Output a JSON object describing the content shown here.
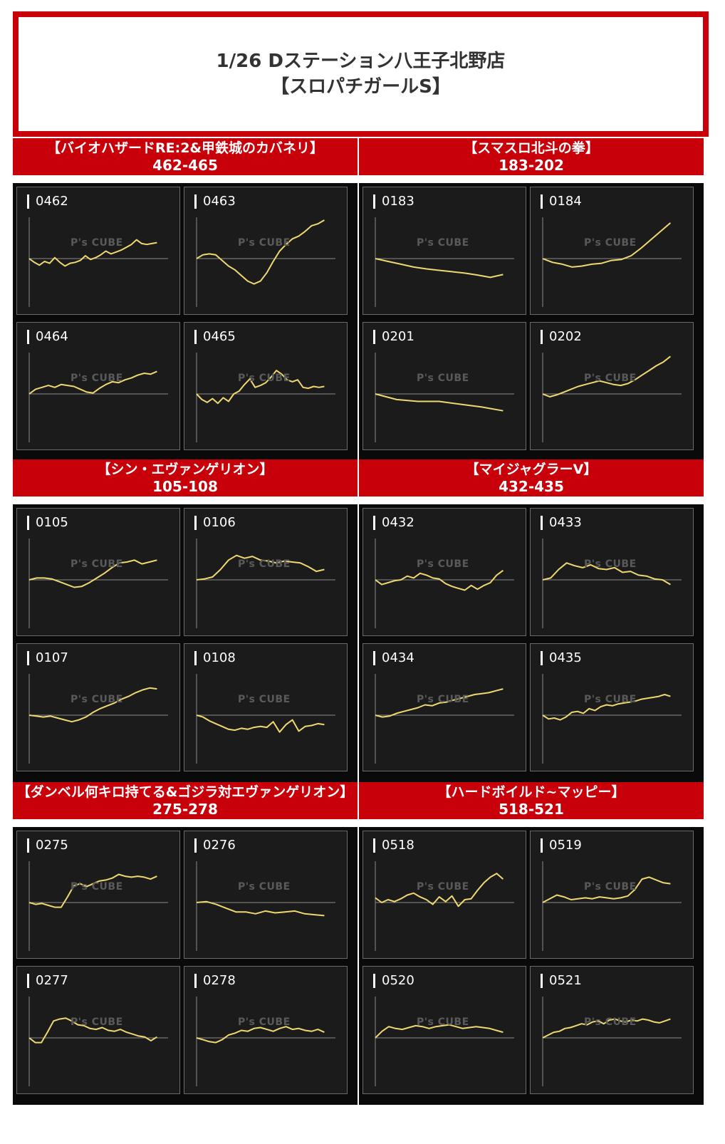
{
  "header": {
    "line1": "1/26 Dステーション八王子北野店",
    "line2": "【スロパチガールS】"
  },
  "watermark": "P's CUBE",
  "colors": {
    "accent": "#c8000a",
    "line": "#f0d870",
    "panel": "#1b1b1b"
  },
  "chart_data": [
    {
      "type": "line",
      "section": "【バイオハザードRE:2&甲鉄城のカバネリ】",
      "range": "462-465",
      "label": "0462",
      "x": [
        0,
        1,
        2,
        3,
        4,
        5,
        6,
        7,
        8,
        9,
        10,
        11,
        12,
        13,
        14,
        15,
        16,
        17,
        18,
        19,
        20,
        21,
        22,
        23,
        24,
        25
      ],
      "values": [
        0,
        -8,
        -14,
        -6,
        -10,
        2,
        -8,
        -16,
        -10,
        -8,
        -4,
        6,
        -2,
        2,
        8,
        16,
        10,
        14,
        18,
        24,
        30,
        40,
        32,
        30,
        32,
        34
      ]
    },
    {
      "type": "line",
      "section": "【バイオハザードRE:2&甲鉄城のカバネリ】",
      "range": "462-465",
      "label": "0463",
      "x": [
        0,
        1,
        2,
        3,
        4,
        5,
        6,
        7,
        8,
        9,
        10,
        11,
        12,
        13,
        14,
        15,
        16,
        17,
        18,
        19,
        20
      ],
      "values": [
        0,
        8,
        10,
        8,
        -4,
        -16,
        -24,
        -36,
        -48,
        -54,
        -48,
        -30,
        -6,
        16,
        30,
        42,
        48,
        58,
        70,
        74,
        82
      ]
    },
    {
      "type": "line",
      "section": "【バイオハザードRE:2&甲鉄城のカバネリ】",
      "range": "462-465",
      "label": "0464",
      "x": [
        0,
        1,
        2,
        3,
        4,
        5,
        6,
        7,
        8,
        9,
        10,
        11,
        12,
        13,
        14,
        15,
        16,
        17,
        18,
        19,
        20
      ],
      "values": [
        0,
        10,
        14,
        18,
        14,
        20,
        18,
        16,
        10,
        4,
        2,
        12,
        20,
        26,
        24,
        30,
        34,
        40,
        44,
        42,
        48
      ]
    },
    {
      "type": "line",
      "section": "【バイオハザードRE:2&甲鉄城のカバネリ】",
      "range": "462-465",
      "label": "0465",
      "x": [
        0,
        1,
        2,
        3,
        4,
        5,
        6,
        7,
        8,
        9,
        10,
        11,
        12,
        13,
        14,
        15,
        16,
        17,
        18,
        19,
        20,
        21,
        22,
        23,
        24
      ],
      "values": [
        0,
        -12,
        -18,
        -10,
        -20,
        -8,
        -16,
        0,
        6,
        20,
        32,
        14,
        18,
        24,
        36,
        50,
        42,
        30,
        26,
        30,
        14,
        12,
        16,
        14,
        16
      ]
    },
    {
      "type": "line",
      "section": "【スマスロ北斗の拳】",
      "range": "183-202",
      "label": "0183",
      "x": [
        0,
        1,
        2,
        3,
        4,
        5,
        6,
        7,
        8,
        9,
        10
      ],
      "values": [
        0,
        -6,
        -12,
        -18,
        -22,
        -25,
        -28,
        -31,
        -35,
        -40,
        -34
      ]
    },
    {
      "type": "line",
      "section": "【スマスロ北斗の拳】",
      "range": "183-202",
      "label": "0184",
      "x": [
        0,
        1,
        2,
        3,
        4,
        5,
        6,
        7,
        8,
        9,
        10,
        11,
        12,
        13
      ],
      "values": [
        0,
        -8,
        -12,
        -18,
        -16,
        -12,
        -10,
        -4,
        -2,
        6,
        22,
        40,
        58,
        76
      ]
    },
    {
      "type": "line",
      "section": "【スマスロ北斗の拳】",
      "range": "183-202",
      "label": "0201",
      "x": [
        0,
        1,
        2,
        3,
        4,
        5,
        6
      ],
      "values": [
        0,
        -12,
        -16,
        -16,
        -22,
        -28,
        -36
      ]
    },
    {
      "type": "line",
      "section": "【スマスロ北斗の拳】",
      "range": "183-202",
      "label": "0202",
      "x": [
        0,
        1,
        2,
        3,
        4,
        5,
        6,
        7,
        8,
        9,
        10,
        11,
        12,
        13,
        14,
        15,
        16,
        17,
        18
      ],
      "values": [
        0,
        -6,
        -2,
        4,
        10,
        16,
        20,
        24,
        28,
        24,
        20,
        18,
        22,
        30,
        40,
        50,
        60,
        68,
        80
      ]
    },
    {
      "type": "line",
      "section": "【シン・エヴァンゲリオン】",
      "range": "105-108",
      "label": "0105",
      "x": [
        0,
        1,
        2,
        3,
        4,
        5,
        6,
        7,
        8,
        9,
        10,
        11,
        12,
        13,
        14,
        15,
        16,
        17
      ],
      "values": [
        0,
        4,
        4,
        2,
        -4,
        -10,
        -16,
        -14,
        -6,
        4,
        14,
        26,
        36,
        38,
        42,
        34,
        38,
        42
      ]
    },
    {
      "type": "line",
      "section": "【シン・エヴァンゲリオン】",
      "range": "105-108",
      "label": "0106",
      "x": [
        0,
        1,
        2,
        3,
        4,
        5,
        6,
        7,
        8,
        9,
        10,
        11,
        12,
        13,
        14,
        15,
        16
      ],
      "values": [
        0,
        2,
        6,
        22,
        42,
        52,
        46,
        50,
        42,
        40,
        36,
        40,
        38,
        36,
        28,
        18,
        22
      ]
    },
    {
      "type": "line",
      "section": "【シン・エヴァンゲリオン】",
      "range": "105-108",
      "label": "0107",
      "x": [
        0,
        1,
        2,
        3,
        4,
        5,
        6,
        7,
        8,
        9,
        10,
        11,
        12,
        13,
        14,
        15,
        16,
        17,
        18
      ],
      "values": [
        0,
        -2,
        -4,
        -2,
        -6,
        -10,
        -14,
        -10,
        -4,
        6,
        14,
        20,
        26,
        34,
        40,
        48,
        54,
        58,
        56
      ]
    },
    {
      "type": "line",
      "section": "【シン・エヴァンゲリオン】",
      "range": "105-108",
      "label": "0108",
      "x": [
        0,
        1,
        2,
        3,
        4,
        5,
        6,
        7,
        8,
        9,
        10,
        11,
        12,
        13,
        14,
        15,
        16,
        17,
        18,
        19,
        20
      ],
      "values": [
        0,
        -4,
        -12,
        -18,
        -24,
        -30,
        -32,
        -28,
        -30,
        -26,
        -24,
        -26,
        -14,
        -36,
        -20,
        -10,
        -34,
        -24,
        -22,
        -18,
        -20
      ]
    },
    {
      "type": "line",
      "section": "【マイジャグラーV】",
      "range": "432-435",
      "label": "0432",
      "x": [
        0,
        1,
        2,
        3,
        4,
        5,
        6,
        7,
        8,
        9,
        10,
        11,
        12,
        13,
        14,
        15,
        16,
        17,
        18,
        19,
        20
      ],
      "values": [
        0,
        -10,
        -6,
        -2,
        0,
        8,
        4,
        14,
        10,
        4,
        2,
        -8,
        -14,
        -18,
        -22,
        -12,
        -20,
        -12,
        -6,
        10,
        20
      ]
    },
    {
      "type": "line",
      "section": "【マイジャグラーV】",
      "range": "432-435",
      "label": "0433",
      "x": [
        0,
        1,
        2,
        3,
        4,
        5,
        6,
        7,
        8,
        9,
        10,
        11,
        12,
        13,
        14,
        15,
        16
      ],
      "values": [
        0,
        4,
        22,
        36,
        30,
        26,
        32,
        24,
        22,
        26,
        16,
        18,
        10,
        8,
        2,
        0,
        -10
      ]
    },
    {
      "type": "line",
      "section": "【マイジャグラーV】",
      "range": "432-435",
      "label": "0434",
      "x": [
        0,
        1,
        2,
        3,
        4,
        5,
        6,
        7,
        8,
        9,
        10,
        11,
        12,
        13,
        14,
        15,
        16,
        17,
        18
      ],
      "values": [
        0,
        -4,
        -2,
        4,
        8,
        12,
        16,
        22,
        20,
        26,
        28,
        32,
        36,
        40,
        44,
        46,
        48,
        52,
        56
      ]
    },
    {
      "type": "line",
      "section": "【マイジャグラーV】",
      "range": "432-435",
      "label": "0435",
      "x": [
        0,
        1,
        2,
        3,
        4,
        5,
        6,
        7,
        8,
        9,
        10,
        11,
        12,
        13,
        14,
        15,
        16,
        17,
        18,
        19,
        20,
        21,
        22
      ],
      "values": [
        0,
        -8,
        -6,
        -10,
        -4,
        6,
        8,
        4,
        14,
        10,
        18,
        22,
        20,
        24,
        26,
        28,
        30,
        34,
        36,
        38,
        40,
        44,
        40
      ]
    },
    {
      "type": "line",
      "section": "【ダンベル何キロ持てる&ゴジラ対エヴァンゲリオン】",
      "range": "275-278",
      "label": "0275",
      "x": [
        0,
        1,
        2,
        3,
        4,
        5,
        6,
        7,
        8,
        9,
        10,
        11,
        12,
        13,
        14,
        15,
        16,
        17,
        18,
        19,
        20
      ],
      "values": [
        0,
        -4,
        -2,
        -6,
        -10,
        -10,
        12,
        36,
        40,
        34,
        40,
        46,
        48,
        52,
        60,
        56,
        54,
        56,
        54,
        50,
        56
      ]
    },
    {
      "type": "line",
      "section": "【ダンベル何キロ持てる&ゴジラ対エヴァンゲリオン】",
      "range": "275-278",
      "label": "0276",
      "x": [
        0,
        1,
        2,
        3,
        4,
        5,
        6,
        7,
        8,
        9,
        10,
        11,
        12,
        13
      ],
      "values": [
        0,
        2,
        -4,
        -12,
        -20,
        -20,
        -24,
        -18,
        -22,
        -20,
        -18,
        -24,
        -26,
        -28
      ]
    },
    {
      "type": "line",
      "section": "【ダンベル何キロ持てる&ゴジラ対エヴァンゲリオン】",
      "range": "275-278",
      "label": "0277",
      "x": [
        0,
        1,
        2,
        3,
        4,
        5,
        6,
        7,
        8,
        9,
        10,
        11,
        12,
        13,
        14,
        15,
        16,
        17,
        18,
        19,
        20,
        21
      ],
      "values": [
        0,
        -10,
        -10,
        12,
        36,
        40,
        42,
        36,
        28,
        26,
        20,
        18,
        22,
        16,
        14,
        18,
        12,
        8,
        4,
        2,
        -6,
        2
      ]
    },
    {
      "type": "line",
      "section": "【ダンベル何キロ持てる&ゴジラ対エヴァンゲリオン】",
      "range": "275-278",
      "label": "0278",
      "x": [
        0,
        1,
        2,
        3,
        4,
        5,
        6,
        7,
        8,
        9,
        10,
        11,
        12,
        13,
        14,
        15,
        16,
        17,
        18,
        19,
        20
      ],
      "values": [
        0,
        -4,
        -8,
        -10,
        -4,
        6,
        10,
        16,
        14,
        20,
        22,
        18,
        14,
        20,
        24,
        18,
        20,
        16,
        14,
        18,
        12
      ]
    },
    {
      "type": "line",
      "section": "【ハードボイルド~マッピー】",
      "range": "518-521",
      "label": "0518",
      "x": [
        0,
        1,
        2,
        3,
        4,
        5,
        6,
        7,
        8,
        9,
        10,
        11,
        12,
        13,
        14,
        15,
        16,
        17,
        18,
        19,
        20
      ],
      "values": [
        10,
        0,
        6,
        2,
        8,
        16,
        20,
        12,
        6,
        -4,
        12,
        2,
        14,
        -8,
        6,
        8,
        26,
        42,
        54,
        62,
        50
      ]
    },
    {
      "type": "line",
      "section": "【ハードボイルド~マッピー】",
      "range": "518-521",
      "label": "0519",
      "x": [
        0,
        1,
        2,
        3,
        4,
        5,
        6,
        7,
        8,
        9,
        10,
        11,
        12,
        13,
        14,
        15,
        16,
        17,
        18
      ],
      "values": [
        0,
        8,
        16,
        12,
        6,
        8,
        10,
        8,
        12,
        10,
        8,
        10,
        14,
        28,
        50,
        54,
        48,
        42,
        40
      ]
    },
    {
      "type": "line",
      "section": "【ハードボイルド~マッピー】",
      "range": "518-521",
      "label": "0520",
      "x": [
        0,
        1,
        2,
        3,
        4,
        5,
        6,
        7,
        8,
        9,
        10,
        11,
        12,
        13,
        14,
        15,
        16,
        17,
        18,
        19
      ],
      "values": [
        0,
        14,
        24,
        20,
        18,
        22,
        26,
        24,
        20,
        24,
        26,
        28,
        24,
        20,
        22,
        24,
        22,
        20,
        16,
        12
      ]
    },
    {
      "type": "line",
      "section": "【ハードボイルド~マッピー】",
      "range": "518-521",
      "label": "0521",
      "x": [
        0,
        1,
        2,
        3,
        4,
        5,
        6,
        7,
        8,
        9,
        10,
        11,
        12,
        13,
        14,
        15,
        16,
        17,
        18,
        19,
        20,
        21,
        22,
        23
      ],
      "values": [
        0,
        6,
        12,
        14,
        20,
        22,
        26,
        30,
        28,
        34,
        36,
        30,
        38,
        40,
        36,
        34,
        38,
        36,
        40,
        38,
        34,
        32,
        36,
        40
      ]
    }
  ]
}
